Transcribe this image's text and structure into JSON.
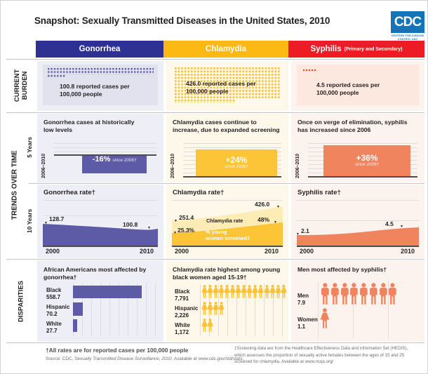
{
  "page": {
    "title": "Snapshot:  Sexually Transmitted Diseases in the United States, 2010"
  },
  "logo": {
    "acronym": "CDC",
    "caption": "CENTERS FOR DISEASE CONTROL AND PREVENTION"
  },
  "columns": {
    "gonorrhea": {
      "label": "Gonorrhea"
    },
    "chlamydia": {
      "label": "Chlamydia"
    },
    "syphilis": {
      "label": "Syphilis",
      "subtitle": "(Primary and Secondary)"
    }
  },
  "row_labels": {
    "current_burden_1": "CURRENT",
    "current_burden_2": "BURDEN",
    "trends": "TRENDS OVER TIME",
    "five_years": "5 Years",
    "ten_years": "10 Years",
    "disparities": "DISPARITIES"
  },
  "current_burden": {
    "gonorrhea": {
      "line1": "100.8 reported cases per",
      "line2": "100,000 people"
    },
    "chlamydia": {
      "line1": "426.0 reported cases per",
      "line2": "100,000 people"
    },
    "syphilis": {
      "line1": "4.5 reported cases per",
      "line2": "100,000 people"
    }
  },
  "five_years": {
    "axis_label": "2006–2010",
    "gonorrhea": {
      "heading1": "Gonorrhea cases at historically",
      "heading2": "low levels",
      "change": "-16%",
      "since": "since 2006†"
    },
    "chlamydia": {
      "heading1": "Chlamydia cases continue to",
      "heading2": "increase, due to expanded screening",
      "change": "+24%",
      "since": "since 2006†"
    },
    "syphilis": {
      "heading1": "Once on verge of elimination, syphilis",
      "heading2": "has increased since 2006",
      "change": "+36%",
      "since": "since 2006†"
    }
  },
  "ten_years": {
    "x_start": "2000",
    "x_end": "2010",
    "gonorrhea": {
      "title": "Gonorrhea rate†",
      "start_value": "128.7",
      "end_value": "100.8"
    },
    "chlamydia": {
      "title": "Chlamydia rate†",
      "rate_start": "251.4",
      "rate_end": "426.0",
      "screened_start": "25.3%",
      "screened_end": "48%",
      "rate_label": "Chlamydia rate",
      "screened_label1": "% young",
      "screened_label2": "women screened‡"
    },
    "syphilis": {
      "title": "Syphilis rate†",
      "start_value": "2.1",
      "end_value": "4.5"
    }
  },
  "disparities": {
    "gonorrhea": {
      "heading1": "African Americans most affected by",
      "heading2": "gonorrhea†",
      "rows": [
        {
          "name": "Black",
          "value": "558.7"
        },
        {
          "name": "Hispanic",
          "value": "70.2"
        },
        {
          "name": "White",
          "value": "27.7"
        }
      ]
    },
    "chlamydia": {
      "heading1": "Chlamydia rate highest among young",
      "heading2": "black women aged 15-19†",
      "rows": [
        {
          "name": "Black",
          "value": "7,791",
          "icons": 15
        },
        {
          "name": "Hispanic",
          "value": "2,226",
          "icons": 4
        },
        {
          "name": "White",
          "value": "1,172",
          "icons": 2
        }
      ]
    },
    "syphilis": {
      "heading1": "Men most affected by syphilis†",
      "rows": [
        {
          "name": "Men",
          "value": "7.9",
          "icons": 8,
          "icon_type": "male"
        },
        {
          "name": "Women",
          "value": "1.1",
          "icons": 1,
          "icon_type": "female"
        }
      ]
    }
  },
  "footer": {
    "note": "†All rates are for reported cases per 100,000 people",
    "source_prefix": "Source: CDC, ",
    "source_italic": "Sexually Transmitted Disease Surveillance, 2010.",
    "source_suffix": " Available at www.cdc.gov/std/stats.",
    "screening_note": "‡Screening data are from the Healthcare Effectiveness Data and Information Set (HEDIS), which assesses the proportion of sexually active females between the ages of 15 and 25 screened for chlamydia. Available at www.ncqa.org/"
  },
  "colors": {
    "gonorrhea_header": "#2e3192",
    "gonorrhea_fill": "#5d5ba6",
    "chlamydia_header": "#fdb913",
    "chlamydia_fill": "#fcc437",
    "chlamydia_light": "#feecb6",
    "syphilis_header": "#ed1c24",
    "syphilis_fill": "#f0845f",
    "syphilis_dots": "#e04c3c",
    "cdc_blue": "#1374b9"
  },
  "chart_data": [
    {
      "type": "bar",
      "title": "Current burden: reported cases per 100,000 people (2010)",
      "categories": [
        "Gonorrhea",
        "Chlamydia",
        "Syphilis"
      ],
      "values": [
        100.8,
        426.0,
        4.5
      ]
    },
    {
      "type": "bar",
      "title": "Change in rate since 2006 (2006–2010, %)",
      "categories": [
        "Gonorrhea",
        "Chlamydia",
        "Syphilis"
      ],
      "values": [
        -16,
        24,
        36
      ]
    },
    {
      "type": "area",
      "title": "Gonorrhea rate, 2000–2010",
      "x": [
        2000,
        2010
      ],
      "values": [
        128.7,
        100.8
      ]
    },
    {
      "type": "area",
      "title": "Chlamydia, 2000–2010",
      "x": [
        2000,
        2010
      ],
      "series": [
        {
          "name": "Chlamydia rate",
          "values": [
            251.4,
            426.0
          ]
        },
        {
          "name": "% young women screened",
          "values": [
            25.3,
            48
          ]
        }
      ]
    },
    {
      "type": "area",
      "title": "Syphilis rate, 2000–2010",
      "x": [
        2000,
        2010
      ],
      "values": [
        2.1,
        4.5
      ]
    },
    {
      "type": "bar",
      "title": "Gonorrhea rate by race/ethnicity",
      "categories": [
        "Black",
        "Hispanic",
        "White"
      ],
      "values": [
        558.7,
        70.2,
        27.7
      ]
    },
    {
      "type": "bar",
      "title": "Chlamydia rate, young black women aged 15-19, by race/ethnicity",
      "categories": [
        "Black",
        "Hispanic",
        "White"
      ],
      "values": [
        7791,
        2226,
        1172
      ]
    },
    {
      "type": "bar",
      "title": "Syphilis rate by sex",
      "categories": [
        "Men",
        "Women"
      ],
      "values": [
        7.9,
        1.1
      ]
    }
  ]
}
